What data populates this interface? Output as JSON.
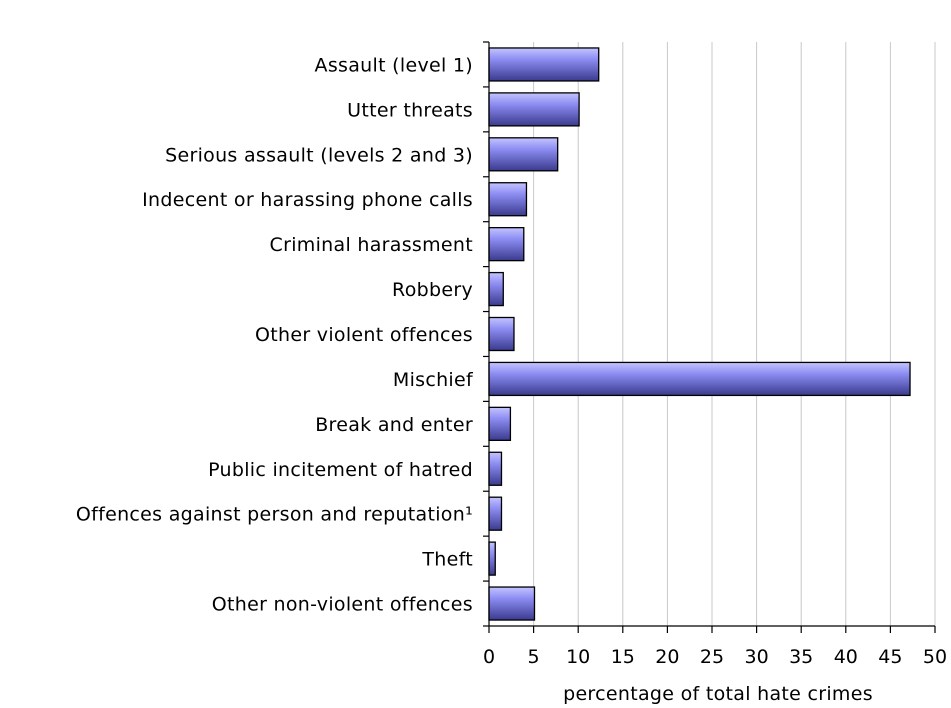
{
  "chart_data": {
    "type": "bar",
    "orientation": "horizontal",
    "categories": [
      "Assault (level 1)",
      "Utter threats",
      "Serious assault (levels 2 and 3)",
      "Indecent or harassing phone calls",
      "Criminal harassment",
      "Robbery",
      "Other violent offences",
      "Mischief",
      "Break and enter",
      "Public incitement of hatred",
      "Offences against person and reputation¹",
      "Theft",
      "Other non-violent offences"
    ],
    "values": [
      12.3,
      10.1,
      7.7,
      4.2,
      3.9,
      1.6,
      2.8,
      47.2,
      2.4,
      1.4,
      1.4,
      0.7,
      5.1
    ],
    "xlabel": "percentage of total hate crimes",
    "ylabel": "",
    "xlim": [
      0,
      50
    ],
    "xticks": [
      "0",
      "5",
      "10",
      "15",
      "20",
      "25",
      "30",
      "35",
      "40",
      "45",
      "50"
    ],
    "grid": true,
    "bar_color": "#8080ee",
    "bar_color_dark": "#3c3c90"
  }
}
